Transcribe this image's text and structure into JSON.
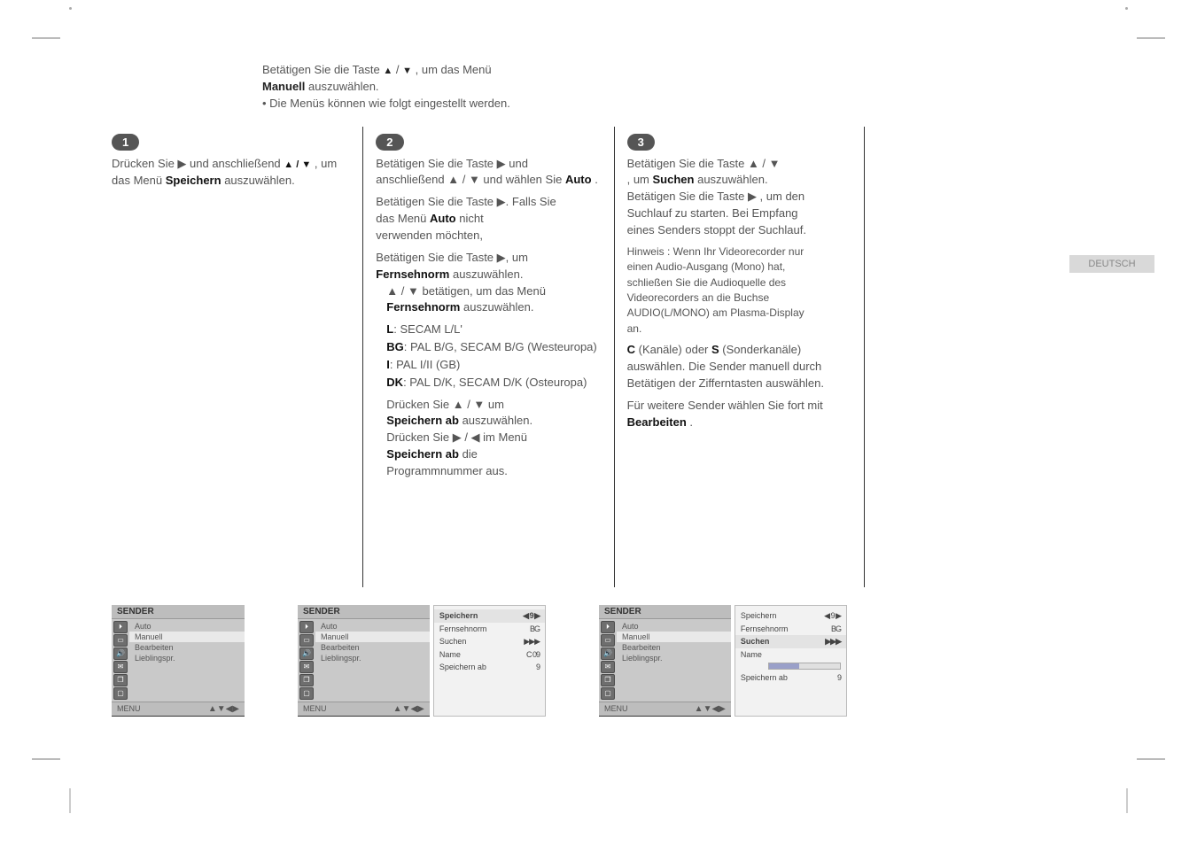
{
  "side_tab": "DEUTSCH",
  "intro": {
    "line1_pre": "Betätigen Sie die Taste ",
    "up": "▲",
    "line1_mid": " / ",
    "down": "▼",
    "line1_post": ", um das Menü",
    "line2_pre": "",
    "highlight": "Manuell",
    "line2_post": " auszuwählen.",
    "foot": "• Die Menüs können wie folgt eingestellt werden."
  },
  "steps": {
    "s1": {
      "num": "1",
      "p1_a": "Drücken Sie ▶ und anschließend ",
      "p1_b": "▲ / ▼",
      "p1_c": ", um das Menü ",
      "p1_d": "Speichern",
      "p1_e": " auszuwählen."
    },
    "s2": {
      "num": "2",
      "l1": "Betätigen Sie die Taste ▶ und",
      "l2_a": "anschließend ▲ / ▼ und wählen Sie",
      "l2_b": " Auto",
      "l2_c": ".",
      "l3": "Betätigen Sie die Taste ▶. Falls Sie",
      "l4_a": "das Menü ",
      "l4_b": "Auto",
      "l4_c": " nicht",
      "l5": "verwenden möchten,",
      "l6": "Betätigen Sie die Taste ▶, um",
      "fn_label": "Fernsehnorm",
      "l7": " auszuwählen.",
      "l8": "▲ / ▼ betätigen, um das Menü",
      "fn_label2": "Fernsehnorm",
      "l9": " auszuwählen.",
      "opts": {
        "L": "L",
        "L_d": ": SECAM L/L'",
        "BG": "BG",
        "BG_d": ": PAL B/G, SECAM B/G  (Westeuropa)",
        "I": "I",
        "I_d": ": PAL I/II  (GB)",
        "DK": "DK",
        "DK_d": ": PAL D/K, SECAM D/K  (Osteuropa)"
      },
      "sab_pre": "Drücken Sie ▲ / ▼ um",
      "sab": "Speichern ab",
      "sab_post": " auszuwählen.",
      "sab2_pre": "Drücken Sie ▶ / ◀ im Menü",
      "sab2": "Speichern ab",
      "sab2_post": " die",
      "sab3": "Programmnummer aus."
    },
    "s3": {
      "num": "3",
      "l1": "Betätigen Sie die Taste ▲ / ▼",
      "l2_a": ", um ",
      "l2_b": "Suchen",
      "l2_c": " auszuwählen.",
      "l3": "Betätigen Sie die Taste ▶ , um den",
      "l4": "Suchlauf zu starten. Bei Empfang",
      "l5": "eines Senders stoppt der Suchlauf.",
      "note1": "Hinweis :  Wenn Ihr Videorecorder nur",
      "note2": "einen Audio-Ausgang (Mono) hat,",
      "note3": "schließen Sie die Audioquelle des",
      "note4": "Videorecorders an die Buchse",
      "note5": "AUDIO(L/MONO) am Plasma-Display",
      "note6": "an.",
      "cs_a": "C",
      "cs_a_post": " (Kanäle) oder ",
      "cs_b": "S",
      "cs_b_post": " (Sonderkanäle)",
      "cs_tail": "auswählen.  Die Sender manuell durch",
      "cs_tail2": "Betätigen der Zifferntasten auswählen.",
      "edit_a": "Für weitere Sender wählen Sie fort mit",
      "edit_b": "Bearbeiten",
      "edit_c": "."
    }
  },
  "osd": {
    "title": "SENDER",
    "foot_left": "MENU",
    "foot_nav": "▲▼◀▶",
    "left_items": [
      "Auto",
      "Manuell",
      "Bearbeiten",
      "Lieblingspr."
    ],
    "hl_index": 1,
    "panel2": {
      "rows": [
        {
          "k": "Speichern",
          "v": "◀ 9 ▶"
        },
        {
          "k": "Fernsehnorm",
          "v": "BG"
        },
        {
          "k": "Suchen",
          "v": "▶▶▶"
        },
        {
          "k": "Name",
          "v": "C 09"
        },
        {
          "k": "Speichern ab",
          "v": "9"
        }
      ],
      "hl": 0
    },
    "panel3": {
      "rows": [
        {
          "k": "Speichern",
          "v": "◀ 9 ▶"
        },
        {
          "k": "Fernsehnorm",
          "v": "BG"
        },
        {
          "k": "Suchen",
          "v": "▶▶▶"
        },
        {
          "k": "Name",
          "v": ""
        },
        {
          "k": "Speichern ab",
          "v": "9"
        }
      ],
      "bar_fill_pct": 42,
      "hl": 2
    }
  }
}
